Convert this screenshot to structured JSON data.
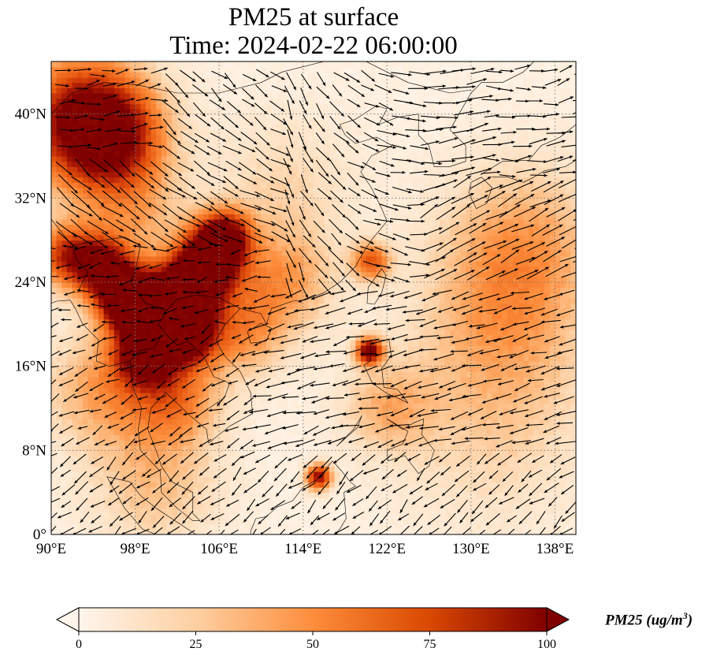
{
  "title": {
    "line1": "PM25 at surface",
    "line2": "Time: 2024-02-22 06:00:00"
  },
  "map": {
    "extent": {
      "lon_min": 90,
      "lon_max": 140,
      "lat_min": 0,
      "lat_max": 45
    },
    "gridlines": {
      "lon": [
        90,
        98,
        106,
        114,
        122,
        130,
        138
      ],
      "lat": [
        0,
        8,
        16,
        24,
        32,
        40
      ],
      "style": "dotted"
    },
    "x_ticks": [
      "90°E",
      "98°E",
      "106°E",
      "114°E",
      "122°E",
      "130°E",
      "138°E"
    ],
    "y_ticks": [
      "0°",
      "8°N",
      "16°N",
      "24°N",
      "32°N",
      "40°N"
    ],
    "hotspots": [
      {
        "lon": 93,
        "lat": 39.5,
        "value": 90,
        "spread_deg": 4.5
      },
      {
        "lon": 96,
        "lat": 37.5,
        "value": 55,
        "spread_deg": 3.5
      },
      {
        "lon": 105,
        "lat": 26,
        "value": 100,
        "spread_deg": 2.2
      },
      {
        "lon": 106.5,
        "lat": 28.5,
        "value": 80,
        "spread_deg": 1.8
      },
      {
        "lon": 103,
        "lat": 23,
        "value": 95,
        "spread_deg": 2.2
      },
      {
        "lon": 100,
        "lat": 21,
        "value": 100,
        "spread_deg": 2.5
      },
      {
        "lon": 97,
        "lat": 22.5,
        "value": 95,
        "spread_deg": 2.0
      },
      {
        "lon": 95,
        "lat": 25.5,
        "value": 75,
        "spread_deg": 2.0
      },
      {
        "lon": 91.5,
        "lat": 26.5,
        "value": 70,
        "spread_deg": 2.2
      },
      {
        "lon": 103,
        "lat": 19,
        "value": 80,
        "spread_deg": 2.0
      },
      {
        "lon": 99,
        "lat": 17,
        "value": 85,
        "spread_deg": 2.0
      },
      {
        "lon": 120.3,
        "lat": 17.5,
        "value": 100,
        "spread_deg": 0.9
      },
      {
        "lon": 120.5,
        "lat": 26,
        "value": 60,
        "spread_deg": 1.3
      },
      {
        "lon": 115.5,
        "lat": 5.5,
        "value": 90,
        "spread_deg": 0.9
      },
      {
        "lon": 95,
        "lat": 14,
        "value": 40,
        "spread_deg": 4.0
      },
      {
        "lon": 102,
        "lat": 13,
        "value": 45,
        "spread_deg": 3.0
      },
      {
        "lon": 108,
        "lat": 19,
        "value": 40,
        "spread_deg": 3.0
      },
      {
        "lon": 112,
        "lat": 24,
        "value": 40,
        "spread_deg": 3.5
      },
      {
        "lon": 135,
        "lat": 28,
        "value": 35,
        "spread_deg": 5.5
      },
      {
        "lon": 133,
        "lat": 20,
        "value": 28,
        "spread_deg": 6.0
      },
      {
        "lon": 132,
        "lat": 10,
        "value": 20,
        "spread_deg": 7.0
      },
      {
        "lon": 100,
        "lat": 5,
        "value": 30,
        "spread_deg": 4.5
      },
      {
        "lon": 122,
        "lat": 12,
        "value": 30,
        "spread_deg": 3.0
      },
      {
        "lon": 112,
        "lat": 33,
        "value": 20,
        "spread_deg": 5.0
      },
      {
        "lon": 98,
        "lat": 30,
        "value": 30,
        "spread_deg": 3.5
      }
    ],
    "colors": {
      "low": "#fff5eb",
      "mid": "#fdae6b",
      "high": "#d94801",
      "max": "#7f0000",
      "coast": "#000000",
      "arrow": "#000000"
    }
  },
  "colorbar": {
    "label": "PM25 (ug/m",
    "label_superscript": "3",
    "label_close": ")",
    "min": 0,
    "max": 100,
    "ticks": [
      "0",
      "25",
      "50",
      "75",
      "100"
    ],
    "extend": "both"
  }
}
